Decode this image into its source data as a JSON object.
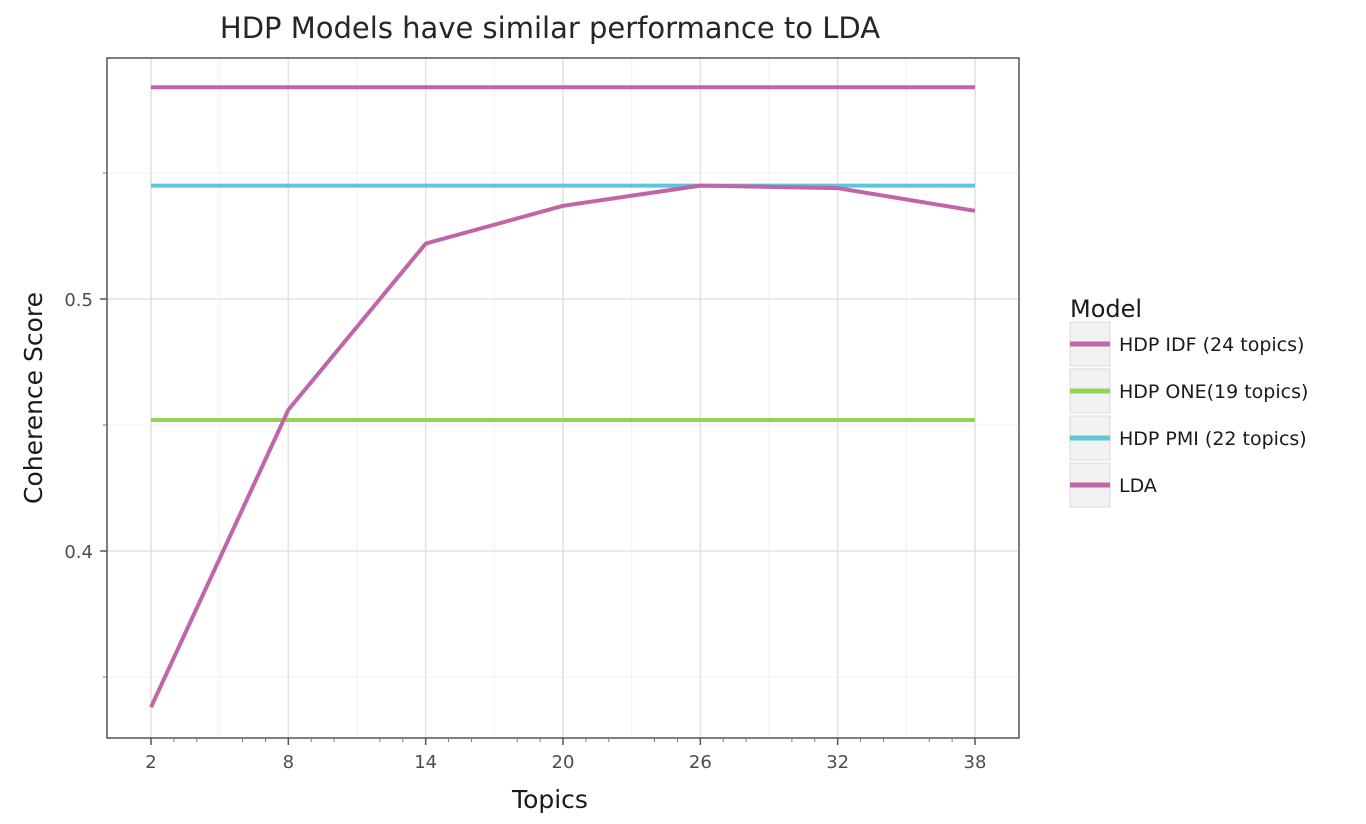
{
  "chart_data": {
    "type": "line",
    "title": "HDP Models have similar performance to LDA",
    "xlabel": "Topics",
    "ylabel": "Coherence Score",
    "x_ticks": [
      2,
      8,
      14,
      20,
      26,
      32,
      38
    ],
    "y_ticks": [
      0.4,
      0.5
    ],
    "xlim": [
      2,
      38
    ],
    "ylim": [
      0.34,
      0.59
    ],
    "grid": true,
    "legend": {
      "title": "Model",
      "placement": "right"
    },
    "series": [
      {
        "name": "HDP IDF (24 topics)",
        "color": "#bf65a8",
        "x": [
          2,
          38
        ],
        "y": [
          0.584,
          0.584
        ]
      },
      {
        "name": "HDP ONE(19 topics)",
        "color": "#8fd657",
        "x": [
          2,
          38
        ],
        "y": [
          0.452,
          0.452
        ]
      },
      {
        "name": "HDP PMI (22 topics)",
        "color": "#5ec6d8",
        "x": [
          2,
          38
        ],
        "y": [
          0.545,
          0.545
        ]
      },
      {
        "name": "LDA",
        "color": "#bf65a8",
        "x": [
          2,
          8,
          14,
          20,
          26,
          32,
          38
        ],
        "y": [
          0.338,
          0.456,
          0.522,
          0.537,
          0.545,
          0.544,
          0.535
        ]
      }
    ]
  }
}
